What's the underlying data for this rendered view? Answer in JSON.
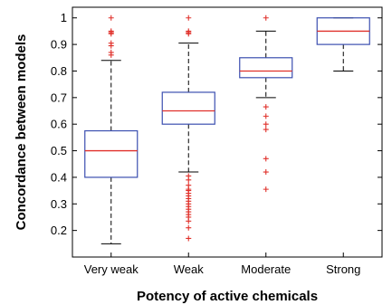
{
  "chart_data": {
    "type": "box",
    "title": "",
    "xlabel": "Potency of active chemicals",
    "ylabel": "Concordance between models",
    "ylim": [
      0.1,
      1.04
    ],
    "yticks": [
      0.2,
      0.3,
      0.4,
      0.5,
      0.6,
      0.7,
      0.8,
      0.9,
      1
    ],
    "ytick_labels": [
      "0.2",
      "0.3",
      "0.4",
      "0.5",
      "0.6",
      "0.7",
      "0.8",
      "0.9",
      "1"
    ],
    "grid": false,
    "colors": {
      "box": "#3b4fb0",
      "median": "#e0302a",
      "whisker": "#000000",
      "outlier": "#e0302a"
    },
    "categories": [
      "Very weak",
      "Weak",
      "Moderate",
      "Strong"
    ],
    "boxes": [
      {
        "category": "Very weak",
        "whisker_low": 0.15,
        "q1": 0.4,
        "median": 0.5,
        "q3": 0.575,
        "whisker_high": 0.84,
        "outliers": [
          1.0,
          0.95,
          0.945,
          0.94,
          0.905,
          0.895,
          0.87,
          0.86
        ]
      },
      {
        "category": "Weak",
        "whisker_low": 0.42,
        "q1": 0.6,
        "median": 0.65,
        "q3": 0.72,
        "whisker_high": 0.905,
        "outliers": [
          1.0,
          0.95,
          0.945,
          0.94,
          0.405,
          0.39,
          0.37,
          0.355,
          0.35,
          0.34,
          0.33,
          0.32,
          0.31,
          0.3,
          0.29,
          0.28,
          0.27,
          0.26,
          0.25,
          0.235,
          0.21,
          0.17
        ]
      },
      {
        "category": "Moderate",
        "whisker_low": 0.7,
        "q1": 0.775,
        "median": 0.8,
        "q3": 0.85,
        "whisker_high": 0.95,
        "outliers": [
          1.0,
          0.665,
          0.63,
          0.6,
          0.58,
          0.47,
          0.42,
          0.355
        ]
      },
      {
        "category": "Strong",
        "whisker_low": 0.8,
        "q1": 0.9,
        "median": 0.95,
        "q3": 1.0,
        "whisker_high": 1.0,
        "outliers": []
      }
    ]
  }
}
